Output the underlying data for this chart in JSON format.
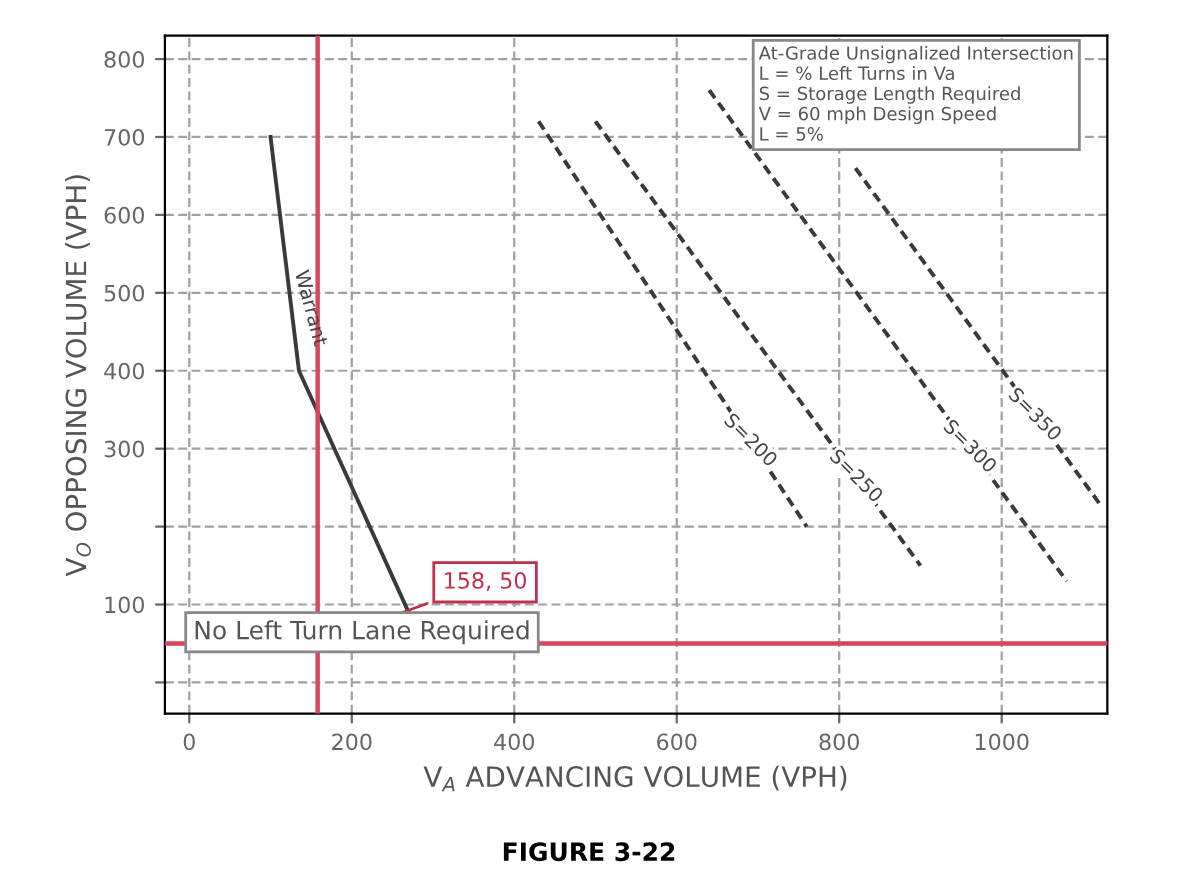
{
  "chart_data": {
    "type": "line",
    "title": "FIGURE 3-22",
    "xlabel": "V$_{A}$ ADVANCING VOLUME (VPH)",
    "ylabel": "V$_{O}$ OPPOSING VOLUME (VPH)",
    "series": [
      {
        "color": "#3a3a3a",
        "x": [
          100,
          135,
          270
        ],
        "values": [
          700,
          400,
          90
        ],
        "line_style": "solid"
      },
      {
        "color": "#3a3a3a",
        "x": [
          430,
          760
        ],
        "values": [
          720,
          200
        ],
        "line_style": "dashed"
      },
      {
        "color": "#3a3a3a",
        "x": [
          500,
          900
        ],
        "values": [
          720,
          150
        ],
        "line_style": "dashed"
      },
      {
        "color": "#3a3a3a",
        "x": [
          640,
          1080
        ],
        "values": [
          760,
          130
        ],
        "line_style": "dashed"
      },
      {
        "color": "#3a3a3a",
        "x": [
          820,
          1120
        ],
        "values": [
          660,
          230
        ],
        "line_style": "dashed"
      }
    ],
    "xlim": [
      -30,
      1130
    ],
    "ylim": [
      -40,
      830
    ],
    "xticks": [
      0,
      200,
      400,
      600,
      800,
      1000
    ],
    "yticks": [
      {
        "value": 0,
        "label": null
      },
      100,
      {
        "value": 200,
        "label": null
      },
      300,
      400,
      500,
      600,
      700,
      800
    ],
    "grid": true,
    "marker": "none",
    "ref_lines": [
      {
        "axis": "x",
        "value": 158,
        "color": "#d9455f"
      },
      {
        "axis": "y",
        "value": 50,
        "color": "#d9455f"
      }
    ],
    "annotations": [
      {
        "text": "158, 50",
        "x": 158,
        "y": 50
      },
      "No Left Turn Lane Required",
      "At-Grade Unsignalized Intersection\nL = % Left Turns in Va\nS = Storage Length Required\nV = 60 mph Design Speed\nL = 5%",
      {
        "text": "Warrant",
        "x": 125,
        "y": 480
      },
      {
        "text": "S=200",
        "x": 690,
        "y": 310
      },
      {
        "text": "S=250",
        "x": 820,
        "y": 264
      },
      {
        "text": "S=300",
        "x": 960,
        "y": 302
      },
      {
        "text": "S=350",
        "x": 1040,
        "y": 343
      }
    ]
  }
}
